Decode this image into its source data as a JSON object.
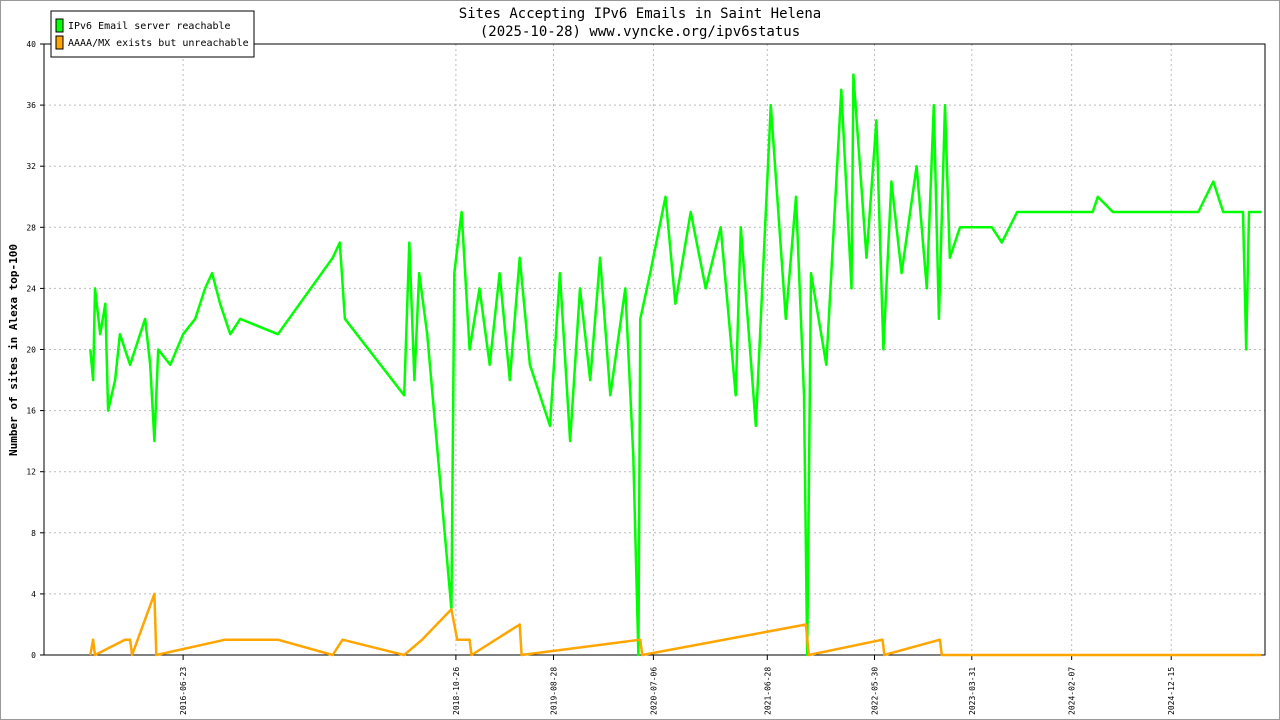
{
  "chart_data": {
    "type": "line",
    "title": "Sites Accepting IPv6 Emails in Saint Helena",
    "subtitle": "(2025-10-28) www.vyncke.org/ipv6status",
    "y_label": "Number of sites in Alexa top-100",
    "ylim": [
      0,
      40
    ],
    "yticks": [
      0,
      4,
      8,
      12,
      16,
      20,
      24,
      28,
      32,
      36,
      40
    ],
    "xlim": [
      "2015-04-14",
      "2025-10-05"
    ],
    "xticks": [
      "2016-06-23",
      "2018-10-26",
      "2019-08-28",
      "2020-07-06",
      "2021-06-28",
      "2022-05-30",
      "2023-03-31",
      "2024-02-07",
      "2024-12-15"
    ],
    "grid": true,
    "legend": "top-left",
    "series": [
      {
        "name": "IPv6 Email server reachable",
        "color": "#00ff00",
        "x": [
          "2015-09-06",
          "2015-09-15",
          "2015-09-21",
          "2015-10-07",
          "2015-10-23",
          "2015-11-01",
          "2015-11-23",
          "2015-12-08",
          "2016-01-09",
          "2016-02-25",
          "2016-03-12",
          "2016-03-25",
          "2016-04-06",
          "2016-05-14",
          "2016-06-23",
          "2016-07-31",
          "2016-08-31",
          "2016-09-22",
          "2016-10-17",
          "2016-11-18",
          "2016-12-19",
          "2017-04-16",
          "2017-10-05",
          "2017-10-27",
          "2017-11-12",
          "2018-05-17",
          "2018-06-02",
          "2018-06-18",
          "2018-07-03",
          "2018-07-28",
          "2018-10-12",
          "2018-10-21",
          "2018-11-13",
          "2018-12-08",
          "2019-01-08",
          "2019-02-09",
          "2019-03-12",
          "2019-04-13",
          "2019-05-14",
          "2019-06-15",
          "2019-08-17",
          "2019-09-17",
          "2019-10-19",
          "2019-11-19",
          "2019-12-21",
          "2020-01-21",
          "2020-02-22",
          "2020-04-09",
          "2020-05-04",
          "2020-05-20",
          "2020-05-26",
          "2020-06-26",
          "2020-08-13",
          "2020-09-13",
          "2020-10-31",
          "2020-12-17",
          "2021-02-02",
          "2021-03-21",
          "2021-04-06",
          "2021-05-23",
          "2021-07-09",
          "2021-08-25",
          "2021-09-26",
          "2021-10-21",
          "2021-10-31",
          "2021-11-12",
          "2021-12-30",
          "2022-02-15",
          "2022-03-19",
          "2022-03-25",
          "2022-05-05",
          "2022-06-05",
          "2022-06-27",
          "2022-07-22",
          "2022-08-23",
          "2022-10-09",
          "2022-11-10",
          "2022-12-02",
          "2022-12-18",
          "2023-01-06",
          "2023-01-21",
          "2023-02-22",
          "2023-06-02",
          "2023-07-03",
          "2023-08-20",
          "2024-04-13",
          "2024-04-29",
          "2024-06-15",
          "2025-03-10",
          "2025-04-26",
          "2025-05-27",
          "2025-07-28",
          "2025-08-07",
          "2025-08-16",
          "2025-09-23"
        ],
        "values": [
          20,
          18,
          24,
          21,
          23,
          16,
          18,
          21,
          19,
          22,
          19,
          14,
          20,
          19,
          21,
          22,
          24,
          25,
          23,
          21,
          22,
          21,
          26,
          27,
          22,
          17,
          27,
          18,
          25,
          21,
          3,
          25,
          29,
          20,
          24,
          19,
          25,
          18,
          26,
          19,
          15,
          25,
          14,
          24,
          18,
          26,
          17,
          24,
          13,
          0,
          22,
          25,
          30,
          23,
          29,
          24,
          28,
          17,
          28,
          15,
          36,
          22,
          30,
          17,
          0,
          25,
          19,
          37,
          24,
          38,
          26,
          35,
          20,
          31,
          25,
          32,
          24,
          36,
          22,
          36,
          26,
          28,
          28,
          27,
          29,
          29,
          30,
          29,
          29,
          31,
          29,
          29,
          20,
          29,
          29
        ]
      },
      {
        "name": "AAAA/MX exists but unreachable",
        "color": "#ffa500",
        "x": [
          "2015-09-06",
          "2015-09-15",
          "2015-09-21",
          "2015-12-24",
          "2016-01-09",
          "2016-01-15",
          "2016-03-25",
          "2016-03-31",
          "2016-11-02",
          "2016-12-19",
          "2017-04-16",
          "2017-10-05",
          "2017-11-05",
          "2018-05-17",
          "2018-07-12",
          "2018-10-12",
          "2018-10-30",
          "2018-12-08",
          "2018-12-14",
          "2019-05-14",
          "2019-05-20",
          "2020-05-26",
          "2020-06-01",
          "2021-10-27",
          "2021-11-05",
          "2022-06-24",
          "2022-06-30",
          "2022-12-21",
          "2022-12-27",
          "2025-09-23"
        ],
        "values": [
          0,
          1,
          0,
          1,
          1,
          0,
          4,
          0,
          1,
          1,
          1,
          0,
          1,
          0,
          1,
          3,
          1,
          1,
          0,
          2,
          0,
          1,
          0,
          2,
          0,
          1,
          0,
          1,
          0,
          0
        ]
      }
    ]
  }
}
